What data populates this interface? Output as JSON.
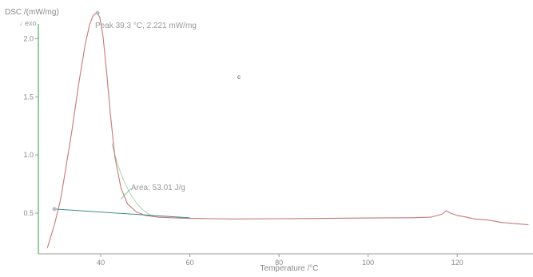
{
  "chart_data": {
    "type": "line",
    "ylabel": "DSC /(mW/mg)",
    "exo_label": "↓ exo",
    "xlabel": "Temperature /°C",
    "stray_label": "c",
    "xlim": [
      26,
      137
    ],
    "ylim": [
      0.15,
      2.25
    ],
    "x_ticks": [
      40,
      60,
      80,
      100,
      120
    ],
    "x_tick_labels": [
      "40",
      "60",
      "80",
      "100",
      "120"
    ],
    "y_ticks": [
      0.5,
      1.0,
      1.5,
      2.0
    ],
    "y_tick_labels": [
      "0.5",
      "1.0",
      "1.5",
      "2.0"
    ],
    "grid": false,
    "colors": {
      "dsc_curve": "#c87878",
      "baseline": "#3c8c8c",
      "area_fill_edge": "#2e9e4a",
      "left_axis": "#2e9e4a",
      "axis": "#999999",
      "text": "#888888",
      "marker": "#bbbbbb"
    },
    "series": [
      {
        "x": [
          28.0,
          29.6,
          31.0,
          32.0,
          33.5,
          35.0,
          36.5,
          37.5,
          38.3,
          39.0,
          39.3,
          39.8,
          40.5,
          41.3,
          42.2,
          43.2,
          44.5,
          46.0,
          48.0,
          50.0,
          53.0,
          56.0,
          60.0,
          65.0,
          70.0,
          80.0,
          90.0,
          100.0,
          110.0,
          114.0,
          116.5,
          117.5,
          118.5,
          120.0,
          121.5,
          124.0,
          127.0,
          130.0,
          133.0,
          136.0
        ],
        "y": [
          0.2,
          0.4,
          0.62,
          0.85,
          1.2,
          1.6,
          1.95,
          2.12,
          2.2,
          2.221,
          2.22,
          2.18,
          2.02,
          1.72,
          1.34,
          0.98,
          0.72,
          0.58,
          0.51,
          0.48,
          0.465,
          0.46,
          0.455,
          0.452,
          0.45,
          0.452,
          0.455,
          0.458,
          0.46,
          0.465,
          0.49,
          0.52,
          0.5,
          0.48,
          0.47,
          0.45,
          0.44,
          0.42,
          0.41,
          0.4
        ]
      }
    ],
    "baseline": {
      "x": [
        29.6,
        60.0
      ],
      "y": [
        0.535,
        0.46
      ]
    },
    "peak": {
      "x": 39.3,
      "y": 2.221,
      "label": "Peak 39.3 °C, 2.221 mW/mg"
    },
    "area": {
      "value": 53.01,
      "label": "Area: 53.01 J/g"
    }
  }
}
